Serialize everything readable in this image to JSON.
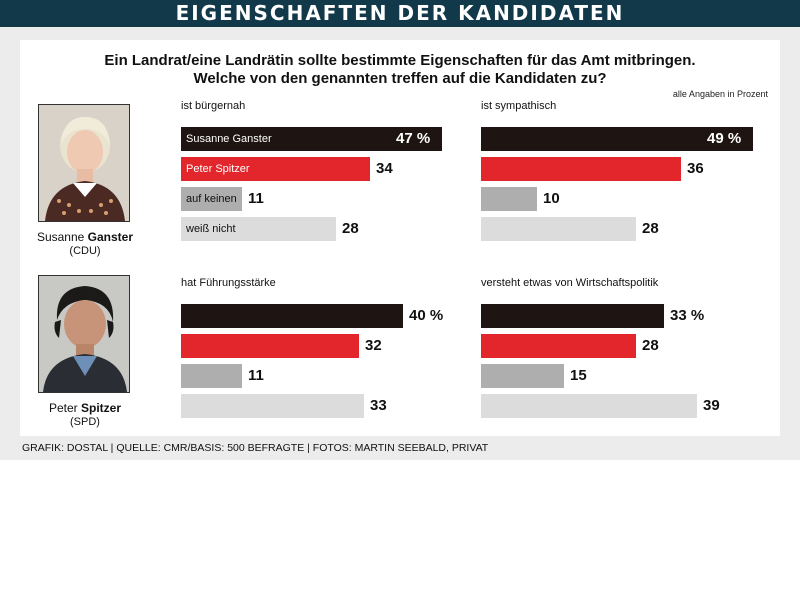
{
  "header": {
    "title": "EIGENSCHAFTEN DER KANDIDATEN"
  },
  "question": {
    "line1": "Ein Landrat/eine Landrätin sollte bestimmte Eigenschaften für das Amt mitbringen.",
    "line2": "Welche von den genannten treffen auf die Kandidaten zu?"
  },
  "note": "alle Angaben in Prozent",
  "candidates": [
    {
      "first": "Susanne",
      "last": "Ganster",
      "party": "(CDU)"
    },
    {
      "first": "Peter",
      "last": "Spitzer",
      "party": "(SPD)"
    }
  ],
  "footer": "GRAFIK: DOSTAL | QUELLE: CMR/BASIS: 500 BEFRAGTE | FOTOS: MARTIN SEEBALD, PRIVAT",
  "colors": {
    "ganster": "#1e1411",
    "spitzer": "#e2262b",
    "auf_keinen": "#aeaeae",
    "weiss_nicht": "#dcdcdc"
  },
  "chart_data": [
    {
      "type": "bar",
      "title": "ist bürgernah",
      "categories": [
        "Susanne Ganster",
        "Peter Spitzer",
        "auf keinen",
        "weiß nicht"
      ],
      "values": [
        47,
        34,
        11,
        28
      ],
      "value_labels": [
        "47 %",
        "34",
        "11",
        "28"
      ],
      "show_category_labels": true
    },
    {
      "type": "bar",
      "title": "ist sympathisch",
      "categories": [
        "Susanne Ganster",
        "Peter Spitzer",
        "auf keinen",
        "weiß nicht"
      ],
      "values": [
        49,
        36,
        10,
        28
      ],
      "value_labels": [
        "49 %",
        "36",
        "10",
        "28"
      ],
      "show_category_labels": false
    },
    {
      "type": "bar",
      "title": "hat Führungsstärke",
      "categories": [
        "Susanne Ganster",
        "Peter Spitzer",
        "auf keinen",
        "weiß nicht"
      ],
      "values": [
        40,
        32,
        11,
        33
      ],
      "value_labels": [
        "40 %",
        "32",
        "11",
        "33"
      ],
      "show_category_labels": false
    },
    {
      "type": "bar",
      "title": "versteht etwas von Wirtschaftspolitik",
      "categories": [
        "Susanne Ganster",
        "Peter Spitzer",
        "auf keinen",
        "weiß nicht"
      ],
      "values": [
        33,
        28,
        15,
        39
      ],
      "value_labels": [
        "33 %",
        "28",
        "15",
        "39"
      ],
      "show_category_labels": false
    }
  ]
}
